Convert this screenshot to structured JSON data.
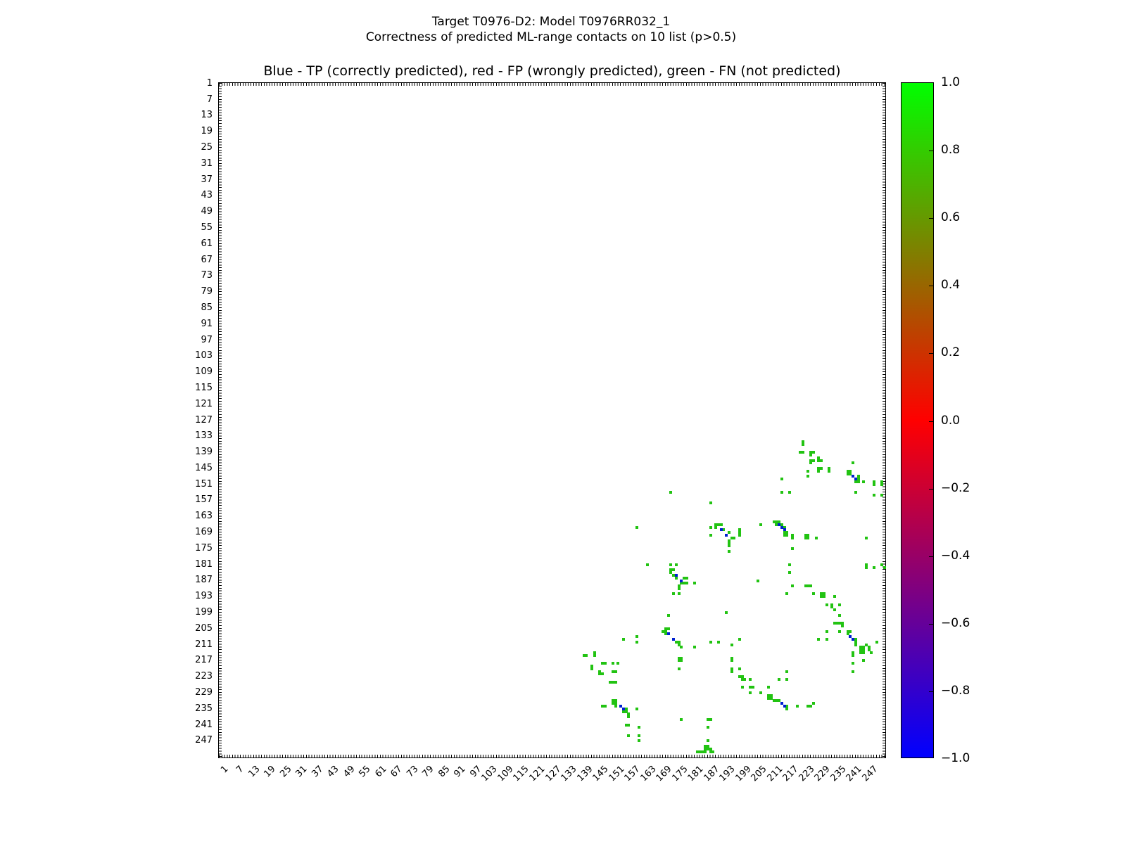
{
  "figure": {
    "suptitle_line1": "Target T0976-D2: Model T0976RR032_1",
    "suptitle_line2": "Correctness of predicted ML-range contacts on 10 list (p>0.5)"
  },
  "chart_data": {
    "type": "scatter",
    "subtype": "protein-contact-map",
    "title": "Blue - TP (correctly predicted), red - FP (wrongly predicted), green - FN (not predicted)",
    "xlabel": "",
    "ylabel": "",
    "axis_range": [
      1,
      253
    ],
    "grid": false,
    "x_tick_labels": [
      1,
      7,
      13,
      19,
      25,
      31,
      37,
      43,
      49,
      55,
      61,
      67,
      73,
      79,
      85,
      91,
      97,
      103,
      109,
      115,
      121,
      127,
      133,
      139,
      145,
      151,
      157,
      163,
      169,
      175,
      181,
      187,
      193,
      199,
      205,
      211,
      217,
      223,
      229,
      235,
      241,
      247
    ],
    "y_tick_labels": [
      1,
      7,
      13,
      19,
      25,
      31,
      37,
      43,
      49,
      55,
      61,
      67,
      73,
      79,
      85,
      91,
      97,
      103,
      109,
      115,
      121,
      127,
      133,
      139,
      145,
      151,
      157,
      163,
      169,
      175,
      181,
      187,
      193,
      199,
      205,
      211,
      217,
      223,
      229,
      235,
      241,
      247
    ],
    "colorbar": {
      "min": -1.0,
      "max": 1.0,
      "tick_labels": [
        "1.0",
        "0.8",
        "0.6",
        "0.4",
        "0.2",
        "0.0",
        "−0.2",
        "−0.4",
        "−0.6",
        "−0.8",
        "−1.0"
      ],
      "gradient_bottom_color": "#0000ff",
      "gradient_middle_color": "#ff0000",
      "gradient_top_color": "#00ff00"
    },
    "series": [
      {
        "name": "FN (not predicted)",
        "color": "#22c312",
        "points": [
          [
            222,
            135
          ],
          [
            222,
            136
          ],
          [
            221,
            139
          ],
          [
            222,
            139
          ],
          [
            225,
            139
          ],
          [
            226,
            139
          ],
          [
            225,
            140
          ],
          [
            228,
            141
          ],
          [
            225,
            142
          ],
          [
            226,
            142
          ],
          [
            228,
            142
          ],
          [
            229,
            142
          ],
          [
            225,
            143
          ],
          [
            241,
            143
          ],
          [
            228,
            145
          ],
          [
            229,
            145
          ],
          [
            232,
            145
          ],
          [
            224,
            146
          ],
          [
            228,
            146
          ],
          [
            232,
            146
          ],
          [
            239,
            146
          ],
          [
            240,
            146
          ],
          [
            239,
            147
          ],
          [
            240,
            147
          ],
          [
            224,
            148
          ],
          [
            243,
            148
          ],
          [
            214,
            149
          ],
          [
            243,
            149
          ],
          [
            242,
            150
          ],
          [
            243,
            150
          ],
          [
            245,
            150
          ],
          [
            249,
            150
          ],
          [
            252,
            150
          ],
          [
            249,
            151
          ],
          [
            252,
            151
          ],
          [
            242,
            154
          ],
          [
            214,
            154
          ],
          [
            217,
            154
          ],
          [
            249,
            155
          ],
          [
            252,
            155
          ],
          [
            172,
            154
          ],
          [
            187,
            158
          ],
          [
            159,
            167
          ],
          [
            187,
            167
          ],
          [
            189,
            166
          ],
          [
            190,
            166
          ],
          [
            191,
            166
          ],
          [
            189,
            167
          ],
          [
            192,
            168
          ],
          [
            198,
            168
          ],
          [
            198,
            169
          ],
          [
            194,
            169
          ],
          [
            187,
            170
          ],
          [
            198,
            170
          ],
          [
            195,
            171
          ],
          [
            196,
            171
          ],
          [
            194,
            172
          ],
          [
            194,
            173
          ],
          [
            194,
            174
          ],
          [
            211,
            165
          ],
          [
            212,
            165
          ],
          [
            213,
            165
          ],
          [
            212,
            166
          ],
          [
            214,
            166
          ],
          [
            206,
            166
          ],
          [
            215,
            167
          ],
          [
            216,
            169
          ],
          [
            215,
            169
          ],
          [
            215,
            170
          ],
          [
            216,
            170
          ],
          [
            218,
            170
          ],
          [
            218,
            171
          ],
          [
            223,
            170
          ],
          [
            224,
            170
          ],
          [
            223,
            171
          ],
          [
            224,
            171
          ],
          [
            227,
            171
          ],
          [
            246,
            171
          ],
          [
            218,
            175
          ],
          [
            217,
            181
          ],
          [
            194,
            176
          ],
          [
            163,
            181
          ],
          [
            172,
            181
          ],
          [
            174,
            181
          ],
          [
            217,
            184
          ],
          [
            246,
            181
          ],
          [
            246,
            182
          ],
          [
            249,
            182
          ],
          [
            252,
            181
          ],
          [
            253,
            182
          ],
          [
            172,
            183
          ],
          [
            173,
            183
          ],
          [
            172,
            184
          ],
          [
            173,
            185
          ],
          [
            174,
            186
          ],
          [
            177,
            186
          ],
          [
            178,
            186
          ],
          [
            176,
            188
          ],
          [
            177,
            188
          ],
          [
            178,
            188
          ],
          [
            181,
            188
          ],
          [
            175,
            189
          ],
          [
            175,
            190
          ],
          [
            173,
            192
          ],
          [
            175,
            192
          ],
          [
            205,
            187
          ],
          [
            218,
            189
          ],
          [
            223,
            189
          ],
          [
            224,
            189
          ],
          [
            225,
            189
          ],
          [
            216,
            192
          ],
          [
            226,
            192
          ],
          [
            229,
            192
          ],
          [
            230,
            192
          ],
          [
            229,
            193
          ],
          [
            230,
            193
          ],
          [
            234,
            193
          ],
          [
            231,
            196
          ],
          [
            233,
            196
          ],
          [
            233,
            197
          ],
          [
            236,
            196
          ],
          [
            234,
            198
          ],
          [
            236,
            200
          ],
          [
            193,
            199
          ],
          [
            171,
            200
          ],
          [
            170,
            205
          ],
          [
            171,
            205
          ],
          [
            169,
            206
          ],
          [
            170,
            206
          ],
          [
            170,
            207
          ],
          [
            174,
            210
          ],
          [
            175,
            210
          ],
          [
            175,
            211
          ],
          [
            176,
            212
          ],
          [
            154,
            209
          ],
          [
            159,
            208
          ],
          [
            159,
            210
          ],
          [
            187,
            210
          ],
          [
            190,
            210
          ],
          [
            195,
            211
          ],
          [
            198,
            209
          ],
          [
            181,
            212
          ],
          [
            139,
            215
          ],
          [
            140,
            215
          ],
          [
            143,
            214
          ],
          [
            143,
            215
          ],
          [
            142,
            219
          ],
          [
            142,
            220
          ],
          [
            146,
            218
          ],
          [
            147,
            218
          ],
          [
            150,
            218
          ],
          [
            152,
            218
          ],
          [
            145,
            221
          ],
          [
            145,
            222
          ],
          [
            146,
            222
          ],
          [
            150,
            221
          ],
          [
            151,
            221
          ],
          [
            149,
            225
          ],
          [
            150,
            225
          ],
          [
            151,
            225
          ],
          [
            175,
            216
          ],
          [
            176,
            216
          ],
          [
            175,
            217
          ],
          [
            176,
            217
          ],
          [
            175,
            220
          ],
          [
            195,
            216
          ],
          [
            195,
            217
          ],
          [
            195,
            220
          ],
          [
            195,
            221
          ],
          [
            198,
            220
          ],
          [
            198,
            223
          ],
          [
            199,
            223
          ],
          [
            199,
            224
          ],
          [
            200,
            224
          ],
          [
            202,
            224
          ],
          [
            199,
            227
          ],
          [
            202,
            227
          ],
          [
            203,
            227
          ],
          [
            206,
            229
          ],
          [
            202,
            229
          ],
          [
            209,
            227
          ],
          [
            234,
            203
          ],
          [
            235,
            203
          ],
          [
            236,
            203
          ],
          [
            237,
            203
          ],
          [
            237,
            204
          ],
          [
            228,
            209
          ],
          [
            231,
            209
          ],
          [
            231,
            206
          ],
          [
            236,
            206
          ],
          [
            239,
            206
          ],
          [
            240,
            206
          ],
          [
            239,
            207
          ],
          [
            242,
            209
          ],
          [
            242,
            210
          ],
          [
            242,
            211
          ],
          [
            246,
            211
          ],
          [
            250,
            210
          ],
          [
            241,
            214
          ],
          [
            241,
            215
          ],
          [
            244,
            212
          ],
          [
            245,
            212
          ],
          [
            244,
            213
          ],
          [
            245,
            213
          ],
          [
            244,
            214
          ],
          [
            245,
            214
          ],
          [
            247,
            212
          ],
          [
            247,
            213
          ],
          [
            248,
            214
          ],
          [
            241,
            218
          ],
          [
            245,
            217
          ],
          [
            241,
            221
          ],
          [
            216,
            221
          ],
          [
            213,
            224
          ],
          [
            216,
            224
          ],
          [
            209,
            230
          ],
          [
            210,
            230
          ],
          [
            209,
            231
          ],
          [
            210,
            231
          ],
          [
            211,
            232
          ],
          [
            212,
            232
          ],
          [
            213,
            232
          ],
          [
            216,
            234
          ],
          [
            216,
            235
          ],
          [
            220,
            234
          ],
          [
            224,
            234
          ],
          [
            225,
            234
          ],
          [
            226,
            233
          ],
          [
            146,
            234
          ],
          [
            147,
            234
          ],
          [
            150,
            232
          ],
          [
            151,
            232
          ],
          [
            150,
            233
          ],
          [
            151,
            233
          ],
          [
            151,
            234
          ],
          [
            155,
            235
          ],
          [
            154,
            236
          ],
          [
            155,
            236
          ],
          [
            156,
            237
          ],
          [
            156,
            238
          ],
          [
            159,
            235
          ],
          [
            155,
            241
          ],
          [
            156,
            241
          ],
          [
            176,
            239
          ],
          [
            186,
            239
          ],
          [
            187,
            239
          ],
          [
            160,
            242
          ],
          [
            186,
            242
          ],
          [
            156,
            245
          ],
          [
            160,
            245
          ],
          [
            160,
            247
          ],
          [
            186,
            247
          ],
          [
            185,
            249
          ],
          [
            186,
            249
          ],
          [
            185,
            250
          ],
          [
            186,
            250
          ],
          [
            187,
            250
          ],
          [
            182,
            251
          ],
          [
            183,
            251
          ],
          [
            184,
            251
          ],
          [
            185,
            251
          ],
          [
            187,
            251
          ],
          [
            188,
            251
          ]
        ]
      },
      {
        "name": "TP (correctly predicted)",
        "color": "#0020d0",
        "points": [
          [
            241,
            148
          ],
          [
            242,
            149
          ],
          [
            191,
            168
          ],
          [
            193,
            170
          ],
          [
            213,
            166
          ],
          [
            214,
            167
          ],
          [
            215,
            168
          ],
          [
            174,
            185
          ],
          [
            176,
            187
          ],
          [
            171,
            207
          ],
          [
            173,
            209
          ],
          [
            240,
            208
          ],
          [
            241,
            209
          ],
          [
            214,
            233
          ],
          [
            215,
            234
          ],
          [
            153,
            234
          ],
          [
            154,
            235
          ],
          [
            214,
            233
          ],
          [
            215,
            234
          ]
        ]
      },
      {
        "name": "FP (wrongly predicted)",
        "color": "#ff0000",
        "points": []
      }
    ]
  }
}
